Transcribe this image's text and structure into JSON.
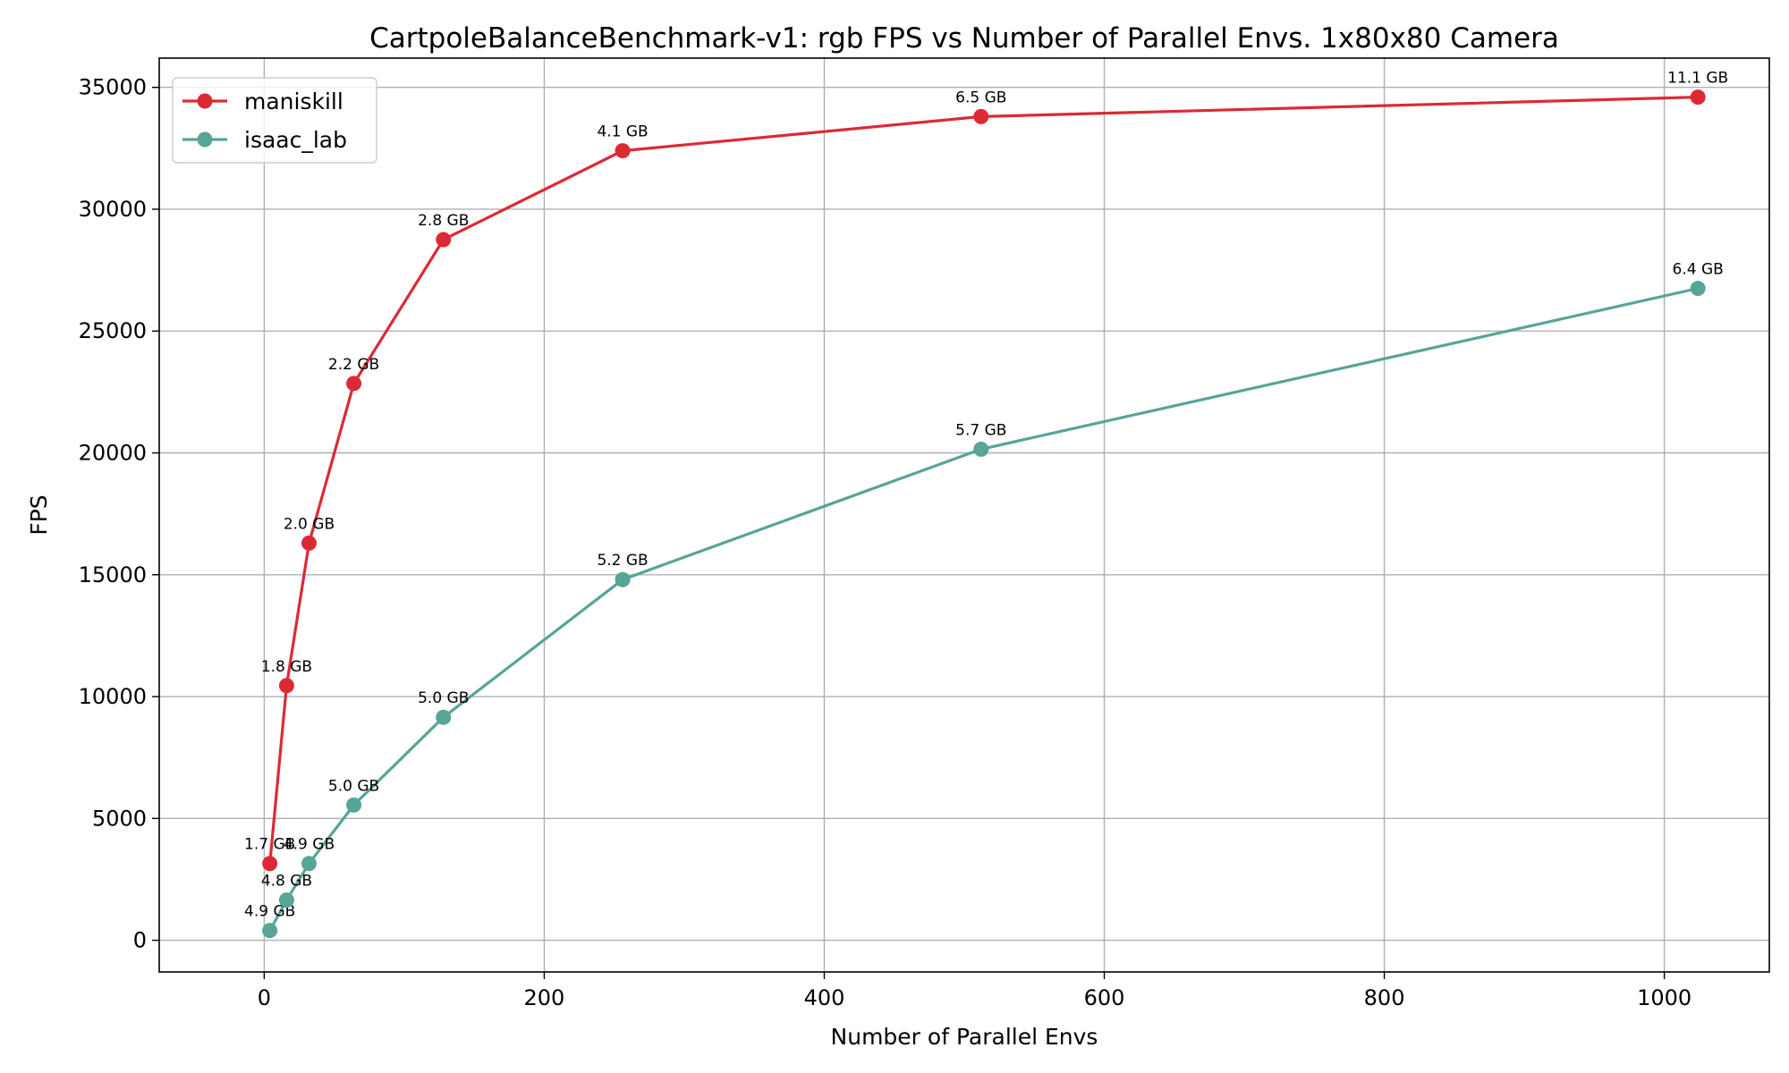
{
  "chart_data": {
    "type": "line",
    "title": "CartpoleBalanceBenchmark-v1: rgb FPS vs Number of Parallel Envs. 1x80x80 Camera",
    "xlabel": "Number of Parallel Envs",
    "ylabel": "FPS",
    "xlim": [
      -75,
      1075
    ],
    "ylim": [
      -1300,
      36200
    ],
    "xticks": [
      0,
      200,
      400,
      600,
      800,
      1000
    ],
    "yticks": [
      0,
      5000,
      10000,
      15000,
      20000,
      25000,
      30000,
      35000
    ],
    "grid": true,
    "legend_position": "top-left",
    "series": [
      {
        "name": "maniskill",
        "color": "#dc2a35",
        "x": [
          4,
          16,
          32,
          64,
          128,
          256,
          512,
          1024
        ],
        "y": [
          3150,
          10450,
          16300,
          22850,
          28750,
          32400,
          33800,
          34600
        ],
        "labels": [
          "1.7 GB",
          "1.8 GB",
          "2.0 GB",
          "2.2 GB",
          "2.8 GB",
          "4.1 GB",
          "6.5 GB",
          "11.1 GB"
        ]
      },
      {
        "name": "isaac_lab",
        "color": "#56a597",
        "x": [
          4,
          16,
          32,
          64,
          128,
          256,
          512,
          1024
        ],
        "y": [
          400,
          1650,
          3150,
          5550,
          9150,
          14800,
          20150,
          26750
        ],
        "labels": [
          "4.9 GB",
          "4.8 GB",
          "4.9 GB",
          "5.0 GB",
          "5.0 GB",
          "5.2 GB",
          "5.7 GB",
          "6.4 GB"
        ]
      }
    ]
  }
}
